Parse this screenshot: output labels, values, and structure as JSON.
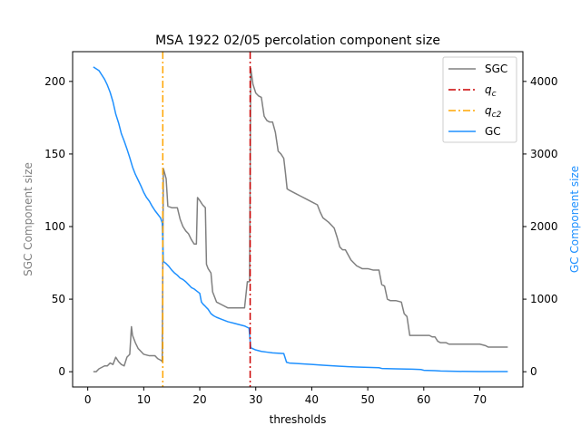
{
  "chart_data": {
    "type": "line",
    "title": "MSA 1922 02/05 percolation component size",
    "xlabel": "thresholds",
    "ylabel_left": "SGC Component size",
    "ylabel_right": "GC Component size",
    "xlim": [
      -2.7,
      77.7
    ],
    "ylim_left": [
      -10.5,
      220.5
    ],
    "ylim_right": [
      -210,
      4410
    ],
    "x_ticks": [
      0,
      10,
      20,
      30,
      40,
      50,
      60,
      70
    ],
    "y_left_ticks": [
      0,
      50,
      100,
      150,
      200
    ],
    "y_right_ticks": [
      0,
      1000,
      2000,
      3000,
      4000
    ],
    "legend_position": "upper right",
    "colors": {
      "sgc": "#808080",
      "qc": "#cc0000",
      "qc2": "#ffa500",
      "gc": "#1e90ff",
      "left_label": "#808080",
      "right_label": "#1e90ff"
    },
    "vlines": [
      {
        "name": "q_c",
        "x": 29.0,
        "color": "#cc0000"
      },
      {
        "name": "q_c2",
        "x": 13.4,
        "color": "#ffa500"
      }
    ],
    "legend": [
      {
        "key": "sgc",
        "label": "SGC",
        "style": "solid"
      },
      {
        "key": "qc",
        "label": "q",
        "sub": "c",
        "style": "dashdot"
      },
      {
        "key": "qc2",
        "label": "q",
        "sub": "c2",
        "style": "dashdot"
      },
      {
        "key": "gc",
        "label": "GC",
        "style": "solid"
      }
    ],
    "series": [
      {
        "name": "SGC",
        "axis": "left",
        "points": [
          [
            1,
            0
          ],
          [
            1.5,
            0
          ],
          [
            2,
            2
          ],
          [
            2.5,
            3
          ],
          [
            3,
            4
          ],
          [
            3.5,
            4
          ],
          [
            4,
            6
          ],
          [
            4.5,
            5
          ],
          [
            5,
            10
          ],
          [
            5.5,
            7
          ],
          [
            6,
            5
          ],
          [
            6.5,
            4
          ],
          [
            7,
            10
          ],
          [
            7.5,
            12
          ],
          [
            7.8,
            31
          ],
          [
            8,
            25
          ],
          [
            8.5,
            20
          ],
          [
            9,
            16
          ],
          [
            9.5,
            14
          ],
          [
            10,
            12
          ],
          [
            11,
            11
          ],
          [
            12,
            11
          ],
          [
            12.5,
            9
          ],
          [
            13,
            8
          ],
          [
            13.3,
            7
          ],
          [
            13.5,
            140
          ],
          [
            14,
            133
          ],
          [
            14.3,
            114
          ],
          [
            15,
            113
          ],
          [
            16,
            113
          ],
          [
            16.5,
            105
          ],
          [
            17,
            100
          ],
          [
            17.5,
            97
          ],
          [
            18,
            95
          ],
          [
            18.5,
            91
          ],
          [
            19,
            88
          ],
          [
            19.4,
            88
          ],
          [
            19.6,
            120
          ],
          [
            20,
            118
          ],
          [
            20.5,
            115
          ],
          [
            21,
            113
          ],
          [
            21.2,
            74
          ],
          [
            21.5,
            71
          ],
          [
            22,
            68
          ],
          [
            22.3,
            55
          ],
          [
            22.6,
            52
          ],
          [
            23,
            48
          ],
          [
            24,
            46
          ],
          [
            25,
            44
          ],
          [
            26,
            44
          ],
          [
            27,
            44
          ],
          [
            28,
            44
          ],
          [
            28.5,
            62
          ],
          [
            28.9,
            62
          ],
          [
            29.1,
            209
          ],
          [
            29.5,
            198
          ],
          [
            30,
            192
          ],
          [
            30.5,
            190
          ],
          [
            31,
            189
          ],
          [
            31.5,
            176
          ],
          [
            32,
            173
          ],
          [
            32.5,
            172
          ],
          [
            33,
            172
          ],
          [
            33.5,
            165
          ],
          [
            34,
            152
          ],
          [
            34.5,
            150
          ],
          [
            35,
            147
          ],
          [
            35.3,
            137
          ],
          [
            35.6,
            126
          ],
          [
            36,
            125
          ],
          [
            37,
            123
          ],
          [
            38,
            121
          ],
          [
            39,
            119
          ],
          [
            40,
            117
          ],
          [
            41,
            115
          ],
          [
            41.5,
            110
          ],
          [
            42,
            106
          ],
          [
            43,
            103
          ],
          [
            44,
            99
          ],
          [
            44.5,
            93
          ],
          [
            45,
            86
          ],
          [
            45.5,
            84
          ],
          [
            46,
            84
          ],
          [
            47,
            77
          ],
          [
            48,
            73
          ],
          [
            49,
            71
          ],
          [
            50,
            71
          ],
          [
            51,
            70
          ],
          [
            52,
            70
          ],
          [
            52.5,
            60
          ],
          [
            53,
            59
          ],
          [
            53.5,
            50
          ],
          [
            54,
            49
          ],
          [
            55,
            49
          ],
          [
            56,
            48
          ],
          [
            56.5,
            40
          ],
          [
            57,
            38
          ],
          [
            57.5,
            25
          ],
          [
            58,
            25
          ],
          [
            59,
            25
          ],
          [
            60,
            25
          ],
          [
            61,
            25
          ],
          [
            61.5,
            24
          ],
          [
            62,
            24
          ],
          [
            62.5,
            21
          ],
          [
            63,
            20
          ],
          [
            64,
            20
          ],
          [
            64.5,
            19
          ],
          [
            65,
            19
          ],
          [
            70,
            19
          ],
          [
            71,
            18
          ],
          [
            71.5,
            17
          ],
          [
            72,
            17
          ],
          [
            75,
            17
          ]
        ]
      },
      {
        "name": "GC",
        "axis": "right",
        "points": [
          [
            1,
            4200
          ],
          [
            2,
            4150
          ],
          [
            2.5,
            4090
          ],
          [
            3,
            4030
          ],
          [
            3.5,
            3950
          ],
          [
            4,
            3850
          ],
          [
            4.5,
            3720
          ],
          [
            5,
            3550
          ],
          [
            5.5,
            3430
          ],
          [
            6,
            3280
          ],
          [
            6.5,
            3180
          ],
          [
            7,
            3070
          ],
          [
            7.5,
            2950
          ],
          [
            8,
            2820
          ],
          [
            8.5,
            2720
          ],
          [
            9,
            2640
          ],
          [
            9.5,
            2560
          ],
          [
            10,
            2470
          ],
          [
            10.5,
            2400
          ],
          [
            11,
            2350
          ],
          [
            11.5,
            2280
          ],
          [
            12,
            2220
          ],
          [
            12.5,
            2170
          ],
          [
            13,
            2120
          ],
          [
            13.3,
            2050
          ],
          [
            13.5,
            1520
          ],
          [
            14,
            1490
          ],
          [
            14.5,
            1450
          ],
          [
            15,
            1400
          ],
          [
            15.5,
            1360
          ],
          [
            16,
            1330
          ],
          [
            16.5,
            1290
          ],
          [
            17,
            1270
          ],
          [
            17.5,
            1240
          ],
          [
            18,
            1200
          ],
          [
            18.5,
            1160
          ],
          [
            19,
            1140
          ],
          [
            19.5,
            1110
          ],
          [
            20,
            1080
          ],
          [
            20.3,
            960
          ],
          [
            20.6,
            930
          ],
          [
            21,
            900
          ],
          [
            21.5,
            860
          ],
          [
            22,
            800
          ],
          [
            22.5,
            770
          ],
          [
            23,
            750
          ],
          [
            24,
            720
          ],
          [
            25,
            690
          ],
          [
            26,
            670
          ],
          [
            27,
            650
          ],
          [
            28,
            630
          ],
          [
            28.8,
            600
          ],
          [
            29.1,
            330
          ],
          [
            30,
            300
          ],
          [
            31,
            280
          ],
          [
            32,
            270
          ],
          [
            33,
            260
          ],
          [
            34,
            255
          ],
          [
            35,
            250
          ],
          [
            35.5,
            130
          ],
          [
            36,
            120
          ],
          [
            40,
            100
          ],
          [
            42,
            90
          ],
          [
            45,
            75
          ],
          [
            48,
            65
          ],
          [
            50,
            60
          ],
          [
            52,
            55
          ],
          [
            52.5,
            45
          ],
          [
            55,
            40
          ],
          [
            58,
            35
          ],
          [
            59.5,
            30
          ],
          [
            60,
            20
          ],
          [
            62,
            15
          ],
          [
            63,
            10
          ],
          [
            66,
            5
          ],
          [
            70,
            3
          ],
          [
            75,
            2
          ]
        ]
      }
    ]
  }
}
